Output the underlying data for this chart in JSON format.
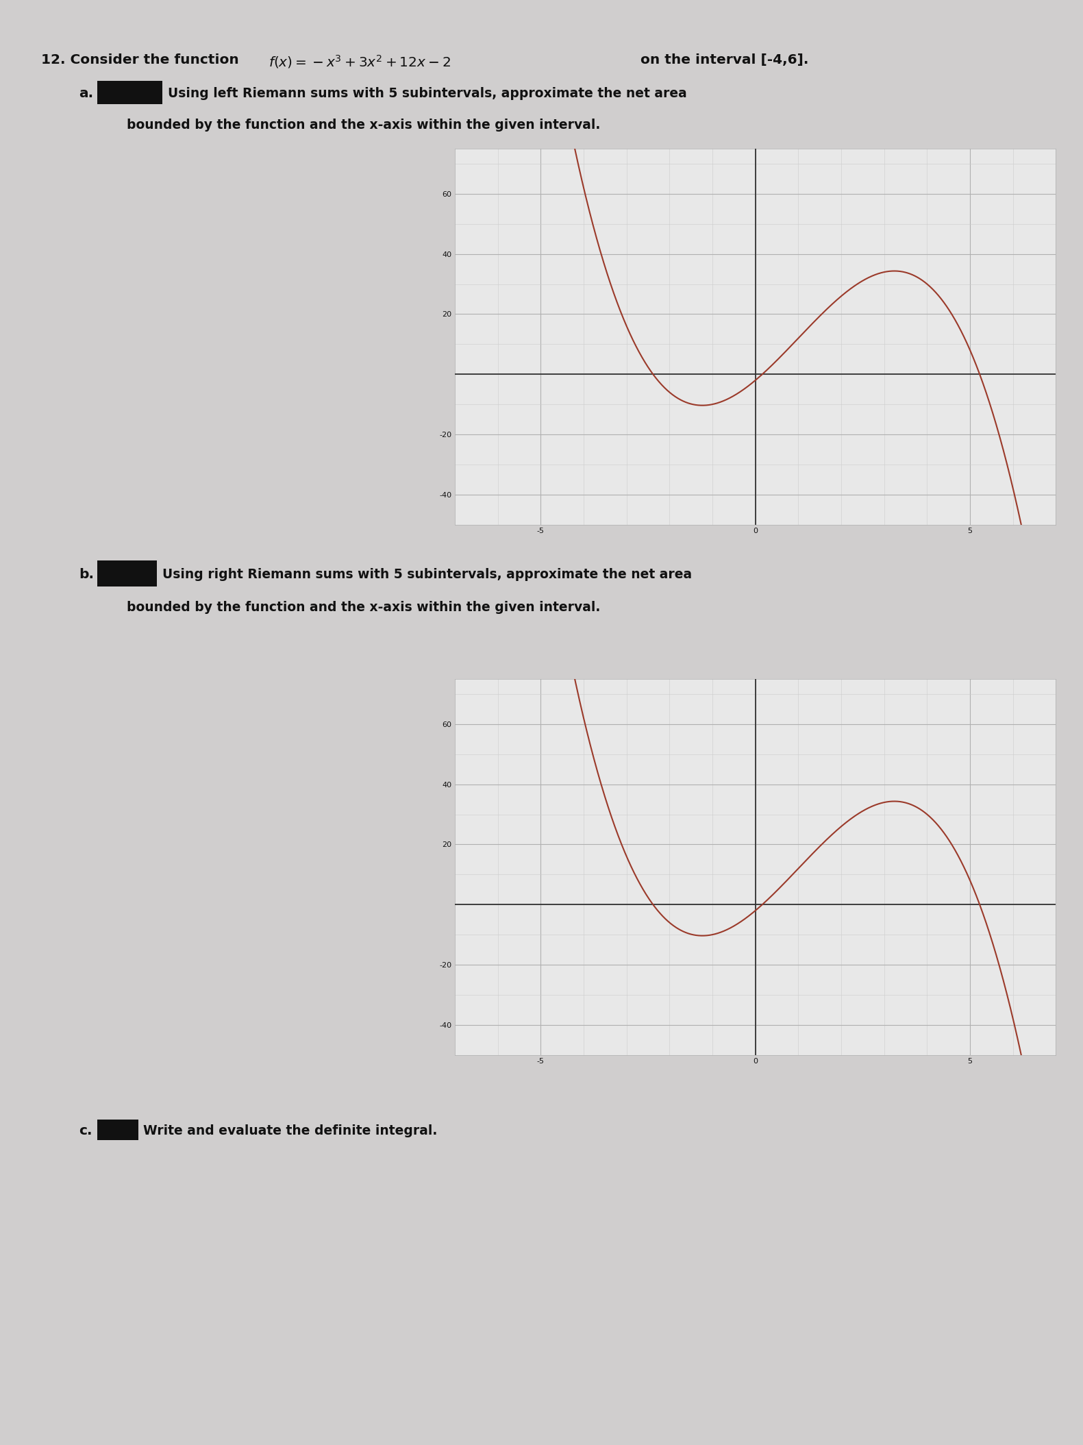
{
  "graph_xlim": [
    -7,
    7
  ],
  "graph_ylim": [
    -50,
    75
  ],
  "curve_color": "#9b3a2a",
  "grid_color_major": "#b0b0b0",
  "grid_color_minor": "#cccccc",
  "axis_color": "#333333",
  "graph_bg": "#e8e8e8",
  "page_bg": "#d0cece",
  "text_color": "#111111",
  "redacted_color": "#111111",
  "font_size_main": 14.5,
  "font_size_label": 13.5,
  "part_a_line1": "Using left Riemann sums with 5 subintervals, approximate the net area",
  "part_a_line2": "bounded by the function and the x-axis within the given interval.",
  "part_b_line1": "Using right Riemann sums with 5 subintervals, approximate the net area",
  "part_b_line2": "bounded by the function and the x-axis within the given interval.",
  "part_c_text": "Write and evaluate the definite integral."
}
